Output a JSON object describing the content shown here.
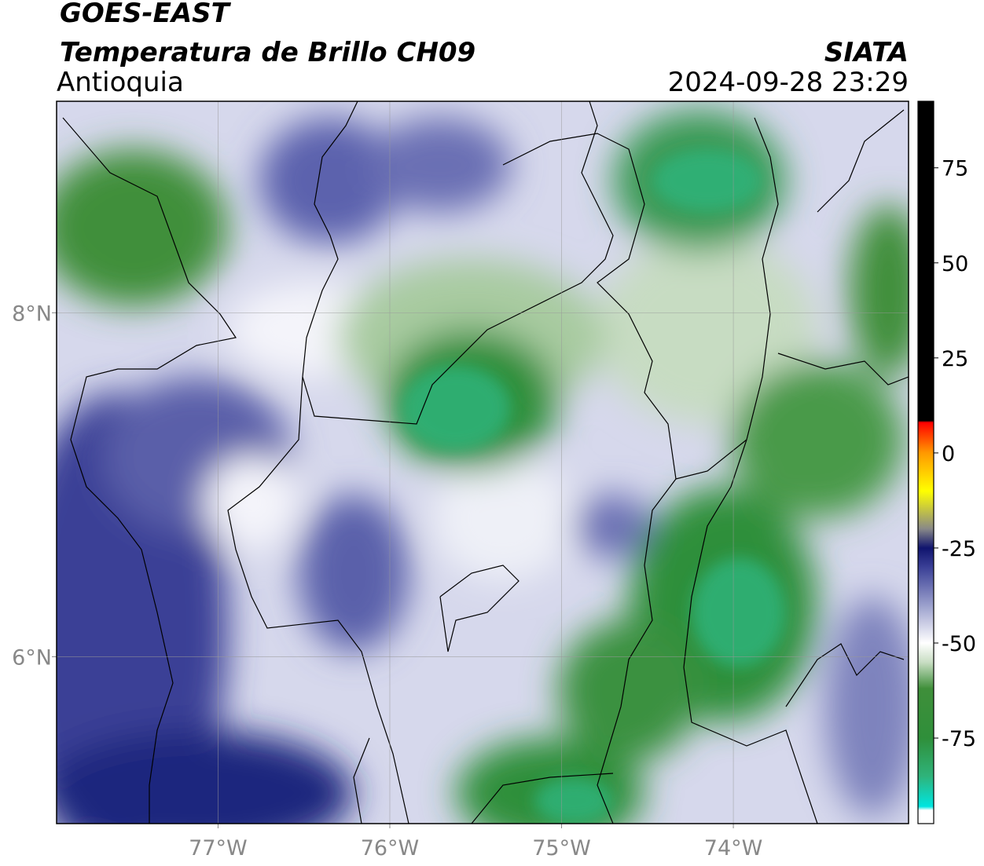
{
  "header": {
    "title": "GOES-EAST",
    "subtitle": "Temperatura de Brillo CH09",
    "region": "Antioquia",
    "source": "SIATA",
    "timestamp": "2024-09-28 23:29"
  },
  "map": {
    "xlim": [
      -77.94,
      -72.98
    ],
    "ylim": [
      5.03,
      9.23
    ],
    "xticks": [
      {
        "value": -77,
        "label": "77°W"
      },
      {
        "value": -76,
        "label": "76°W"
      },
      {
        "value": -75,
        "label": "75°W"
      },
      {
        "value": -74,
        "label": "74°W"
      }
    ],
    "yticks": [
      {
        "value": 6,
        "label": "6°N"
      },
      {
        "value": 8,
        "label": "8°N"
      }
    ],
    "grid": true
  },
  "colorbar": {
    "lim": [
      -97.5,
      92.5
    ],
    "ticks": [
      -75,
      -50,
      -25,
      0,
      25,
      50,
      75
    ],
    "colors": [
      {
        "value": -97.5,
        "color": "#ffffff"
      },
      {
        "value": -94,
        "color": "#ffffff"
      },
      {
        "value": -93,
        "color": "#00e5e0"
      },
      {
        "value": -85,
        "color": "#2fb37a"
      },
      {
        "value": -75,
        "color": "#2f8f3a"
      },
      {
        "value": -62,
        "color": "#3f8f3a"
      },
      {
        "value": -55,
        "color": "#c9dec4"
      },
      {
        "value": -50,
        "color": "#ffffff"
      },
      {
        "value": -40,
        "color": "#9a9fcc"
      },
      {
        "value": -30,
        "color": "#3a3f96"
      },
      {
        "value": -25,
        "color": "#10146e"
      },
      {
        "value": -20,
        "color": "#888888"
      },
      {
        "value": -10,
        "color": "#ffff00"
      },
      {
        "value": 0,
        "color": "#ff9900"
      },
      {
        "value": 8,
        "color": "#ff0000"
      },
      {
        "value": 8.5,
        "color": "#000000"
      },
      {
        "value": 92.5,
        "color": "#000000"
      }
    ]
  }
}
